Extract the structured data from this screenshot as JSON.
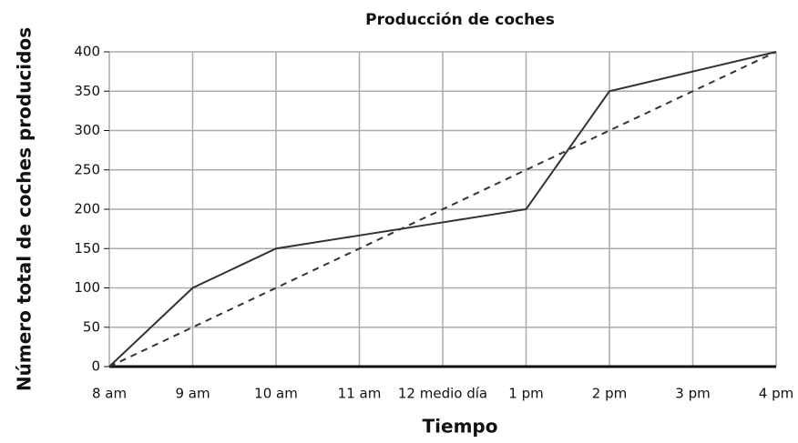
{
  "chart_data": {
    "type": "line",
    "title": "Producción de coches",
    "x_label": "Tiempo",
    "y_label": "Número total de coches producidos",
    "categories": [
      "8 am",
      "9 am",
      "10 am",
      "11 am",
      "12 medio día",
      "1 pm",
      "2 pm",
      "3 pm",
      "4 pm"
    ],
    "series": [
      {
        "color": "#333333",
        "style": "solid",
        "values": [
          0,
          100,
          150,
          166.7,
          183.3,
          200,
          350,
          375,
          400
        ]
      },
      {
        "color": "#333333",
        "style": "dashed",
        "values": [
          0,
          50,
          100,
          150,
          200,
          250,
          300,
          350,
          400
        ]
      }
    ],
    "ylim": [
      0,
      400
    ],
    "yticks": [
      0,
      50,
      100,
      150,
      200,
      250,
      300,
      350,
      400
    ],
    "grid": true,
    "grid_color": "#aaaaaa"
  }
}
